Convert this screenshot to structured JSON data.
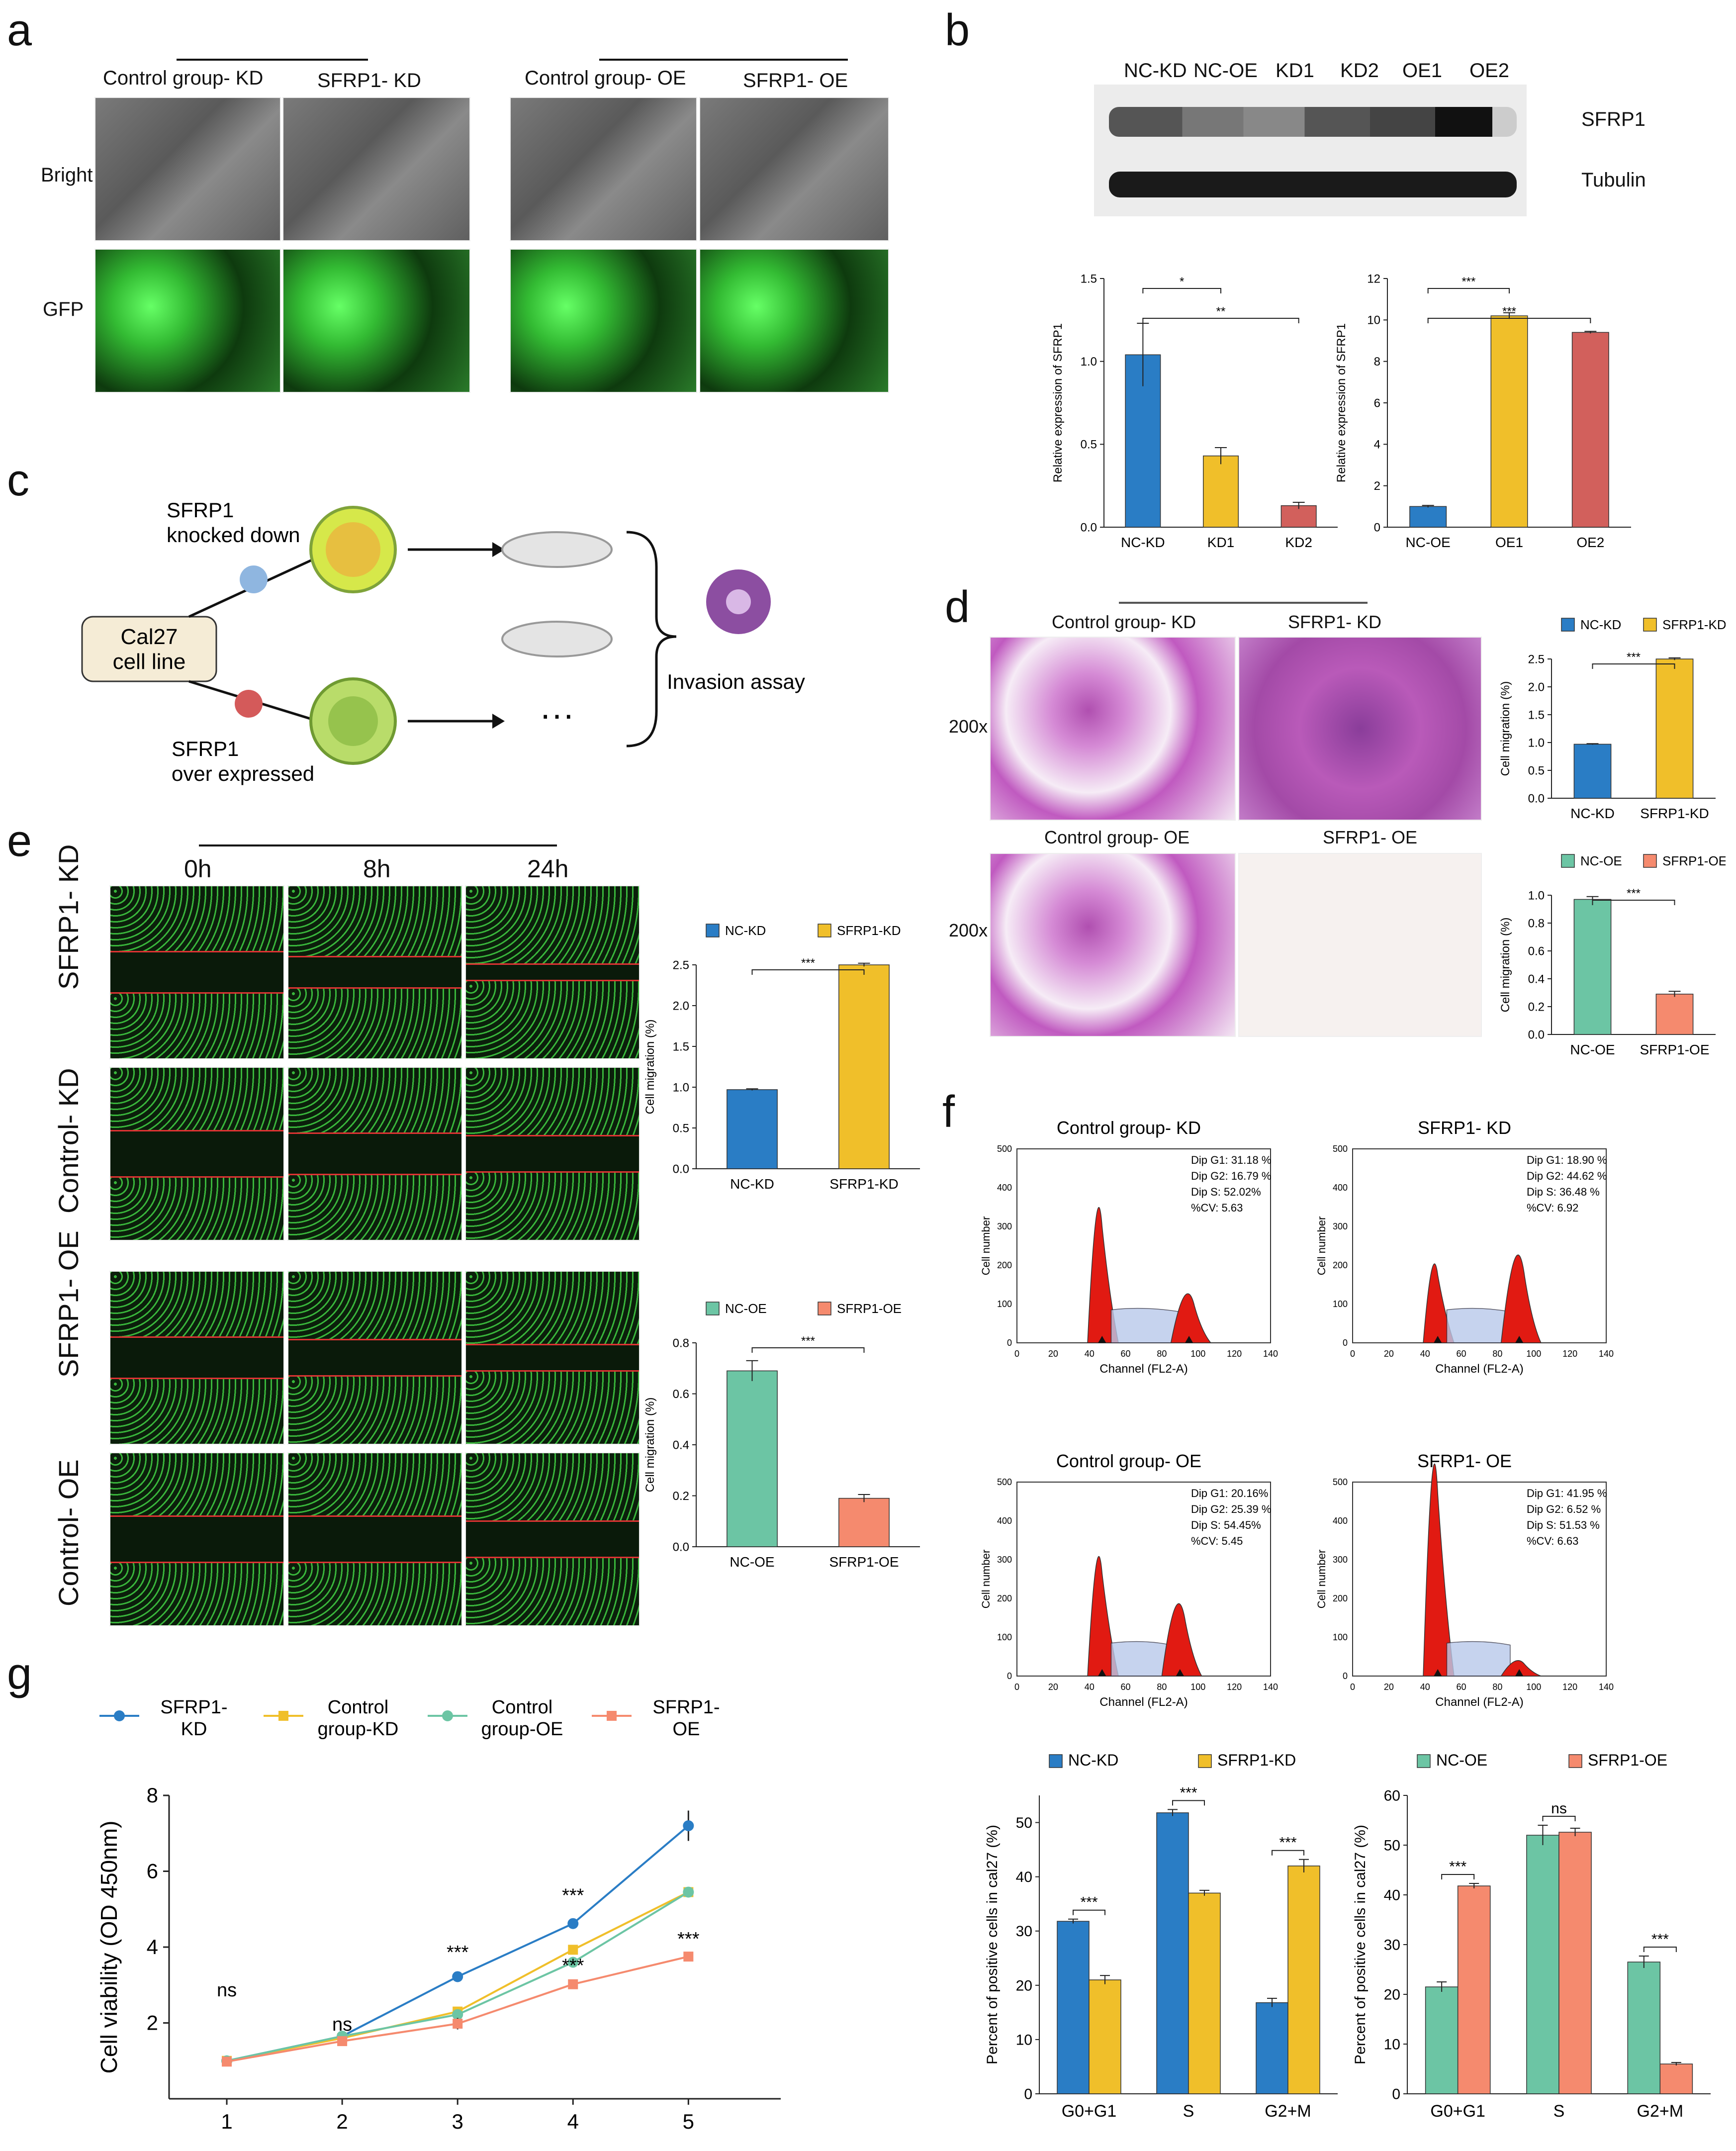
{
  "panels": {
    "a": {
      "letter": "a",
      "groups": [
        "Control group- KD",
        "SFRP1- KD",
        "Control group- OE",
        "SFRP1- OE"
      ],
      "rows": [
        "Bright",
        "GFP"
      ]
    },
    "b": {
      "letter": "b",
      "lanes": [
        "NC-KD",
        "NC-OE",
        "KD1",
        "KD2",
        "OE1",
        "OE2"
      ],
      "bands": [
        "SFRP1",
        "Tubulin"
      ]
    },
    "c": {
      "letter": "c",
      "cell_line": [
        "Cal27",
        "cell line"
      ],
      "top_label": [
        "SFRP1",
        "knocked down"
      ],
      "bottom_label": [
        "SFRP1",
        "over expressed"
      ],
      "ellipsis": "···",
      "assay": "Invasion assay"
    },
    "d": {
      "letter": "d",
      "groups": [
        "Control group- KD",
        "SFRP1- KD",
        "Control group- OE",
        "SFRP1- OE"
      ],
      "magnification": "200x"
    },
    "e": {
      "letter": "e",
      "times": [
        "0h",
        "8h",
        "24h"
      ],
      "rows": [
        "SFRP1- KD",
        "Control- KD",
        "SFRP1- OE",
        "Control- OE"
      ]
    },
    "f": {
      "letter": "f",
      "histograms": [
        {
          "title": "Control group- KD",
          "stats": [
            "Dip G1: 31.18 %",
            "Dip G2: 16.79 %",
            "Dip S: 52.02%",
            "%CV: 5.63"
          ]
        },
        {
          "title": "SFRP1- KD",
          "stats": [
            "Dip G1: 18.90 %",
            "Dip G2: 44.62 %",
            "Dip S: 36.48 %",
            "%CV: 6.92"
          ]
        },
        {
          "title": "Control group- OE",
          "stats": [
            "Dip G1: 20.16%",
            "Dip G2: 25.39 %",
            "Dip S: 54.45%",
            "%CV: 5.45"
          ]
        },
        {
          "title": "SFRP1- OE",
          "stats": [
            "Dip G1: 41.95 %",
            "Dip G2: 6.52 %",
            "Dip S: 51.53 %",
            "%CV: 6.63"
          ]
        }
      ],
      "hist_xlabel": "Channel (FL2-A)",
      "hist_ylabel": "Cell number",
      "hist_xticks": [
        "0",
        "20",
        "40",
        "60",
        "80",
        "100",
        "120",
        "140"
      ],
      "hist_yticks": [
        "0",
        "100",
        "200",
        "300",
        "400",
        "500"
      ]
    },
    "g": {
      "letter": "g"
    }
  },
  "colors": {
    "blue": "#2a7dc5",
    "yellow": "#f0bf2a",
    "red": "#d2605c",
    "teal": "#6cc5a4",
    "salmon": "#f58a6e",
    "histRed": "#e11a12"
  },
  "chart_data": [
    {
      "id": "b1",
      "type": "bar",
      "categories": [
        "NC-KD",
        "KD1",
        "KD2"
      ],
      "values": [
        1.04,
        0.43,
        0.13
      ],
      "errors": [
        0.19,
        0.05,
        0.02
      ],
      "colors": [
        "#2a7dc5",
        "#f0bf2a",
        "#d2605c"
      ],
      "ylabel": "Relative expression of SFRP1",
      "ylim": [
        0,
        1.5
      ],
      "yticks": [
        "0.0",
        "0.5",
        "1.0",
        "1.5"
      ],
      "sig": [
        {
          "from": 0,
          "to": 1,
          "label": "*"
        },
        {
          "from": 0,
          "to": 2,
          "label": "**"
        }
      ]
    },
    {
      "id": "b2",
      "type": "bar",
      "categories": [
        "NC-OE",
        "OE1",
        "OE2"
      ],
      "values": [
        1.0,
        10.2,
        9.4
      ],
      "errors": [
        0.05,
        0.15,
        0.05
      ],
      "colors": [
        "#2a7dc5",
        "#f0bf2a",
        "#d2605c"
      ],
      "ylabel": "Relative expression of SFRP1",
      "ylim": [
        0,
        12
      ],
      "yticks": [
        "0",
        "2",
        "4",
        "6",
        "8",
        "10",
        "12"
      ],
      "sig": [
        {
          "from": 0,
          "to": 1,
          "label": "***"
        },
        {
          "from": 0,
          "to": 2,
          "label": "***"
        }
      ]
    },
    {
      "id": "d1",
      "type": "bar",
      "categories": [
        "NC-KD",
        "SFRP1-KD"
      ],
      "values": [
        0.97,
        2.5
      ],
      "errors": [
        0.01,
        0.02
      ],
      "colors": [
        "#2a7dc5",
        "#f0bf2a"
      ],
      "legend": [
        "NC-KD",
        "SFRP1-KD"
      ],
      "ylabel": "Cell migration (%)",
      "ylim": [
        0,
        2.5
      ],
      "yticks": [
        "0.0",
        "0.5",
        "1.0",
        "1.5",
        "2.0",
        "2.5"
      ],
      "sig": [
        {
          "from": 0,
          "to": 1,
          "label": "***"
        }
      ]
    },
    {
      "id": "d2",
      "type": "bar",
      "categories": [
        "NC-OE",
        "SFRP1-OE"
      ],
      "values": [
        0.97,
        0.29
      ],
      "errors": [
        0.02,
        0.02
      ],
      "colors": [
        "#6cc5a4",
        "#f58a6e"
      ],
      "legend": [
        "NC-OE",
        "SFRP1-OE"
      ],
      "ylabel": "Cell migration (%)",
      "ylim": [
        0,
        1.0
      ],
      "yticks": [
        "0.0",
        "0.2",
        "0.4",
        "0.6",
        "0.8",
        "1.0"
      ],
      "sig": [
        {
          "from": 0,
          "to": 1,
          "label": "***"
        }
      ]
    },
    {
      "id": "e1",
      "type": "bar",
      "categories": [
        "NC-KD",
        "SFRP1-KD"
      ],
      "values": [
        0.97,
        2.5
      ],
      "errors": [
        0.01,
        0.02
      ],
      "colors": [
        "#2a7dc5",
        "#f0bf2a"
      ],
      "legend": [
        "NC-KD",
        "SFRP1-KD"
      ],
      "ylabel": "Cell migration (%)",
      "ylim": [
        0,
        2.5
      ],
      "yticks": [
        "0.0",
        "0.5",
        "1.0",
        "1.5",
        "2.0",
        "2.5"
      ],
      "sig": [
        {
          "from": 0,
          "to": 1,
          "label": "***"
        }
      ]
    },
    {
      "id": "e2",
      "type": "bar",
      "categories": [
        "NC-OE",
        "SFRP1-OE"
      ],
      "values": [
        0.69,
        0.19
      ],
      "errors": [
        0.04,
        0.015
      ],
      "colors": [
        "#6cc5a4",
        "#f58a6e"
      ],
      "legend": [
        "NC-OE",
        "SFRP1-OE"
      ],
      "ylabel": "Cell migration (%)",
      "ylim": [
        0,
        0.8
      ],
      "yticks": [
        "0.0",
        "0.2",
        "0.4",
        "0.6",
        "0.8"
      ],
      "sig": [
        {
          "from": 0,
          "to": 1,
          "label": "***"
        }
      ]
    },
    {
      "id": "f1",
      "type": "bar",
      "categories": [
        "G0+G1",
        "S",
        "G2+M"
      ],
      "series": [
        {
          "name": "NC-KD",
          "values": [
            31.8,
            51.8,
            16.8
          ],
          "errors": [
            0.4,
            0.6,
            0.8
          ],
          "color": "#2a7dc5"
        },
        {
          "name": "SFRP1-KD",
          "values": [
            21.0,
            37.0,
            42.0
          ],
          "errors": [
            0.8,
            0.5,
            1.2
          ],
          "color": "#f0bf2a"
        }
      ],
      "ylabel": "Percent of positive cells in cal27 (%)",
      "ylim": [
        0,
        55
      ],
      "yticks": [
        "0",
        "10",
        "20",
        "30",
        "40",
        "50"
      ],
      "sig": [
        "***",
        "***",
        "***"
      ]
    },
    {
      "id": "f2",
      "type": "bar",
      "categories": [
        "G0+G1",
        "S",
        "G2+M"
      ],
      "series": [
        {
          "name": "NC-OE",
          "values": [
            21.5,
            52.0,
            26.5
          ],
          "errors": [
            1.0,
            2.0,
            1.2
          ],
          "color": "#6cc5a4"
        },
        {
          "name": "SFRP1-OE",
          "values": [
            41.8,
            52.6,
            6.0
          ],
          "errors": [
            0.5,
            0.8,
            0.3
          ],
          "color": "#f58a6e"
        }
      ],
      "ylabel": "Percent of positive cells in cal27 (%)",
      "ylim": [
        0,
        60
      ],
      "yticks": [
        "0",
        "10",
        "20",
        "30",
        "40",
        "50",
        "60"
      ],
      "sig": [
        "***",
        "ns",
        "***"
      ]
    },
    {
      "id": "g",
      "type": "line",
      "x": [
        1,
        2,
        3,
        4,
        5
      ],
      "series": [
        {
          "name": "SFRP1-\nKD",
          "values": [
            1.0,
            1.65,
            3.22,
            4.62,
            7.2
          ],
          "errors": [
            0.02,
            0.03,
            0.03,
            0.03,
            0.4
          ],
          "color": "#2a7dc5",
          "marker": "circle"
        },
        {
          "name": "Control\ngroup-KD",
          "values": [
            1.0,
            1.6,
            2.3,
            3.93,
            5.45
          ],
          "errors": [
            0.02,
            0.03,
            0.05,
            0.03,
            0.08
          ],
          "color": "#f0bf2a",
          "marker": "square"
        },
        {
          "name": "Control\ngroup-OE",
          "values": [
            1.0,
            1.65,
            2.22,
            3.6,
            5.45
          ],
          "errors": [
            0.02,
            0.03,
            0.05,
            0.03,
            0.08
          ],
          "color": "#6cc5a4",
          "marker": "circle"
        },
        {
          "name": "SFRP1-\nOE",
          "values": [
            0.98,
            1.52,
            1.98,
            3.02,
            3.75
          ],
          "errors": [
            0.02,
            0.03,
            0.15,
            0.03,
            0.08
          ],
          "color": "#f58a6e",
          "marker": "square"
        }
      ],
      "ylabel": "Cell viability (OD 450nm)",
      "ylim": [
        0,
        8
      ],
      "yticks": [
        "2",
        "4",
        "6",
        "8"
      ],
      "xticks": [
        "1",
        "2",
        "3",
        "4",
        "5"
      ],
      "annotations": [
        {
          "x": 1,
          "y": 2.7,
          "text": "ns"
        },
        {
          "x": 2,
          "y": 1.8,
          "text": "ns"
        },
        {
          "x": 3,
          "y": 3.7,
          "text": "***"
        },
        {
          "x": 4,
          "y": 5.2,
          "text": "***"
        },
        {
          "x": 4,
          "y": 3.35,
          "text": "***"
        },
        {
          "x": 5,
          "y": 4.05,
          "text": "***"
        }
      ]
    }
  ]
}
